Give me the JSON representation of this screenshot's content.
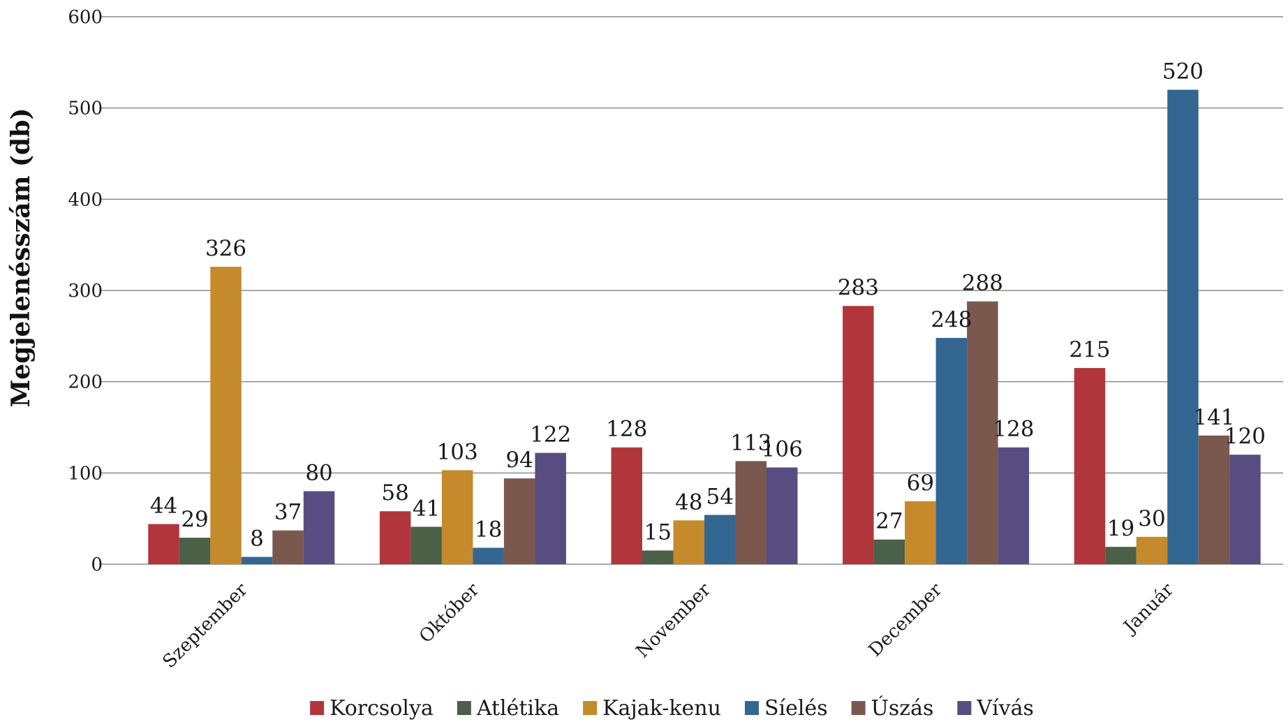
{
  "chart_data": {
    "type": "bar",
    "title": "",
    "xlabel": "",
    "ylabel": "Megjelenésszám (db)",
    "ylim": [
      0,
      600
    ],
    "yticks": [
      0,
      100,
      200,
      300,
      400,
      500,
      600
    ],
    "grid": true,
    "legend_position": "bottom",
    "categories": [
      "Szeptember",
      "Október",
      "November",
      "December",
      "Január"
    ],
    "series": [
      {
        "name": "Korcsolya",
        "color": "#b0363c",
        "values": [
          44,
          58,
          128,
          283,
          215
        ]
      },
      {
        "name": "Atlétika",
        "color": "#4a6047",
        "values": [
          29,
          41,
          15,
          27,
          19
        ]
      },
      {
        "name": "Kajak-kenu",
        "color": "#c48a2b",
        "values": [
          326,
          103,
          48,
          69,
          30
        ]
      },
      {
        "name": "Síelés",
        "color": "#346692",
        "values": [
          8,
          18,
          54,
          248,
          520
        ]
      },
      {
        "name": "Úszás",
        "color": "#7a584d",
        "values": [
          37,
          94,
          113,
          288,
          141
        ]
      },
      {
        "name": "Vívás",
        "color": "#574d80",
        "values": [
          80,
          122,
          106,
          128,
          120
        ]
      }
    ]
  }
}
